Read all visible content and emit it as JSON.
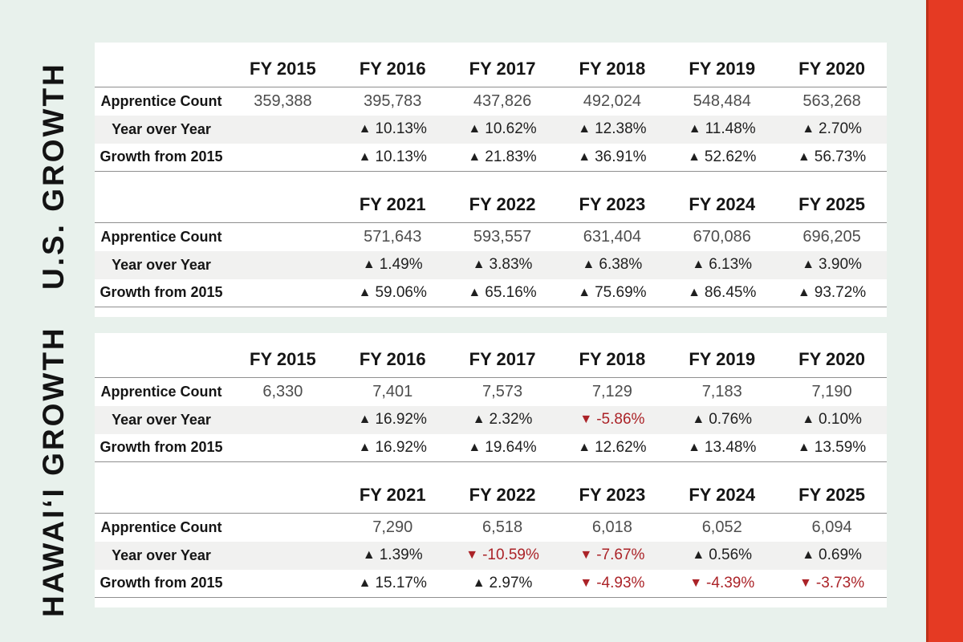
{
  "canvas": {
    "background": "#e8f1ec",
    "card_background": "#ffffff",
    "accent_bar_color": "#e53a23",
    "accent_bar_edge_color": "#bd3118",
    "zebra_row_color": "#f1f1f0",
    "grid_line_color": "#8f8f8f",
    "positive_color": "#1f1f1f",
    "negative_color": "#ab2328",
    "count_color": "#4d4d4d",
    "label_color": "#151515"
  },
  "glyphs": {
    "up": "▲",
    "down": "▼"
  },
  "sections": [
    {
      "title": "U.S. GROWTH",
      "row_labels": {
        "count": "Apprentice Count",
        "yoy": "Year over Year",
        "growth": "Growth from 2015"
      },
      "blocks": [
        {
          "headers": [
            "FY 2015",
            "FY 2016",
            "FY 2017",
            "FY 2018",
            "FY 2019",
            "FY 2020"
          ],
          "counts": [
            "359,388",
            "395,783",
            "437,826",
            "492,024",
            "548,484",
            "563,268"
          ],
          "yoy": [
            null,
            {
              "dir": "up",
              "value": "10.13%"
            },
            {
              "dir": "up",
              "value": "10.62%"
            },
            {
              "dir": "up",
              "value": "12.38%"
            },
            {
              "dir": "up",
              "value": "11.48%"
            },
            {
              "dir": "up",
              "value": "2.70%"
            }
          ],
          "growth": [
            null,
            {
              "dir": "up",
              "value": "10.13%"
            },
            {
              "dir": "up",
              "value": "21.83%"
            },
            {
              "dir": "up",
              "value": "36.91%"
            },
            {
              "dir": "up",
              "value": "52.62%"
            },
            {
              "dir": "up",
              "value": "56.73%"
            }
          ]
        },
        {
          "headers": [
            "",
            "FY 2021",
            "FY 2022",
            "FY 2023",
            "FY 2024",
            "FY 2025"
          ],
          "counts": [
            "",
            "571,643",
            "593,557",
            "631,404",
            "670,086",
            "696,205"
          ],
          "yoy": [
            null,
            {
              "dir": "up",
              "value": "1.49%"
            },
            {
              "dir": "up",
              "value": "3.83%"
            },
            {
              "dir": "up",
              "value": "6.38%"
            },
            {
              "dir": "up",
              "value": "6.13%"
            },
            {
              "dir": "up",
              "value": "3.90%"
            }
          ],
          "growth": [
            null,
            {
              "dir": "up",
              "value": "59.06%"
            },
            {
              "dir": "up",
              "value": "65.16%"
            },
            {
              "dir": "up",
              "value": "75.69%"
            },
            {
              "dir": "up",
              "value": "86.45%"
            },
            {
              "dir": "up",
              "value": "93.72%"
            }
          ]
        }
      ]
    },
    {
      "title": "HAWAIʻI GROWTH",
      "row_labels": {
        "count": "Apprentice Count",
        "yoy": "Year over Year",
        "growth": "Growth from 2015"
      },
      "blocks": [
        {
          "headers": [
            "FY 2015",
            "FY 2016",
            "FY 2017",
            "FY 2018",
            "FY 2019",
            "FY 2020"
          ],
          "counts": [
            "6,330",
            "7,401",
            "7,573",
            "7,129",
            "7,183",
            "7,190"
          ],
          "yoy": [
            null,
            {
              "dir": "up",
              "value": "16.92%"
            },
            {
              "dir": "up",
              "value": "2.32%"
            },
            {
              "dir": "down",
              "value": "-5.86%"
            },
            {
              "dir": "up",
              "value": "0.76%"
            },
            {
              "dir": "up",
              "value": "0.10%"
            }
          ],
          "growth": [
            null,
            {
              "dir": "up",
              "value": "16.92%"
            },
            {
              "dir": "up",
              "value": "19.64%"
            },
            {
              "dir": "up",
              "value": "12.62%"
            },
            {
              "dir": "up",
              "value": "13.48%"
            },
            {
              "dir": "up",
              "value": "13.59%"
            }
          ]
        },
        {
          "headers": [
            "",
            "FY 2021",
            "FY 2022",
            "FY 2023",
            "FY 2024",
            "FY 2025"
          ],
          "counts": [
            "",
            "7,290",
            "6,518",
            "6,018",
            "6,052",
            "6,094"
          ],
          "yoy": [
            null,
            {
              "dir": "up",
              "value": "1.39%"
            },
            {
              "dir": "down",
              "value": "-10.59%"
            },
            {
              "dir": "down",
              "value": "-7.67%"
            },
            {
              "dir": "up",
              "value": "0.56%"
            },
            {
              "dir": "up",
              "value": "0.69%"
            }
          ],
          "growth": [
            null,
            {
              "dir": "up",
              "value": "15.17%"
            },
            {
              "dir": "up",
              "value": "2.97%"
            },
            {
              "dir": "down",
              "value": "-4.93%"
            },
            {
              "dir": "down",
              "value": "-4.39%"
            },
            {
              "dir": "down",
              "value": "-3.73%"
            }
          ]
        }
      ]
    }
  ],
  "chart_data": [
    {
      "type": "table",
      "title": "U.S. GROWTH",
      "columns": [
        "FY 2015",
        "FY 2016",
        "FY 2017",
        "FY 2018",
        "FY 2019",
        "FY 2020",
        "FY 2021",
        "FY 2022",
        "FY 2023",
        "FY 2024",
        "FY 2025"
      ],
      "rows": [
        {
          "label": "Apprentice Count",
          "values": [
            359388,
            395783,
            437826,
            492024,
            548484,
            563268,
            571643,
            593557,
            631404,
            670086,
            696205
          ]
        },
        {
          "label": "Year over Year",
          "unit": "%",
          "values": [
            null,
            10.13,
            10.62,
            12.38,
            11.48,
            2.7,
            1.49,
            3.83,
            6.38,
            6.13,
            3.9
          ]
        },
        {
          "label": "Growth from 2015",
          "unit": "%",
          "values": [
            null,
            10.13,
            21.83,
            36.91,
            52.62,
            56.73,
            59.06,
            65.16,
            75.69,
            86.45,
            93.72
          ]
        }
      ]
    },
    {
      "type": "table",
      "title": "HAWAIʻI GROWTH",
      "columns": [
        "FY 2015",
        "FY 2016",
        "FY 2017",
        "FY 2018",
        "FY 2019",
        "FY 2020",
        "FY 2021",
        "FY 2022",
        "FY 2023",
        "FY 2024",
        "FY 2025"
      ],
      "rows": [
        {
          "label": "Apprentice Count",
          "values": [
            6330,
            7401,
            7573,
            7129,
            7183,
            7190,
            7290,
            6518,
            6018,
            6052,
            6094
          ]
        },
        {
          "label": "Year over Year",
          "unit": "%",
          "values": [
            null,
            16.92,
            2.32,
            -5.86,
            0.76,
            0.1,
            1.39,
            -10.59,
            -7.67,
            0.56,
            0.69
          ]
        },
        {
          "label": "Growth from 2015",
          "unit": "%",
          "values": [
            null,
            16.92,
            19.64,
            12.62,
            13.48,
            13.59,
            15.17,
            2.97,
            -4.93,
            -4.39,
            -3.73
          ]
        }
      ]
    }
  ]
}
